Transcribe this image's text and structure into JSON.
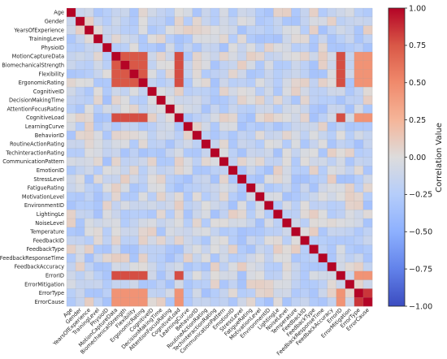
{
  "chart_data": {
    "type": "heatmap",
    "labels": [
      "Age",
      "Gender",
      "YearsOfExperience",
      "TrainingLevel",
      "PhysioID",
      "MotionCaptureData",
      "BiomechanicalStrength",
      "Flexibility",
      "ErgonomicRating",
      "CognitiveID",
      "DecisionMakingTime",
      "AttentionFocusRating",
      "CognitiveLoad",
      "LearningCurve",
      "BehaviorID",
      "RoutineActionRating",
      "TechinteractionRating",
      "CommunicationPattern",
      "EmotionID",
      "StressLevel",
      "FatigueRating",
      "MotivationLevel",
      "EnvironmentID",
      "LightingLe",
      "NoiseLevel",
      "Temperature",
      "FeedbackID",
      "FeedbackType",
      "FeedbackResponseTime",
      "FeedbackAccuracy",
      "ErrorID",
      "ErrorMitigation",
      "ErrorType",
      "ErrorCause"
    ],
    "colorbar": {
      "label": "Correlation Value",
      "min": -1.0,
      "max": 1.0,
      "ticks": [
        "1.00",
        "0.75",
        "0.50",
        "0.25",
        "0.00",
        "−0.25",
        "−0.50",
        "−0.75",
        "−1.00"
      ]
    },
    "diagonal_value": 1.0,
    "strong_group_a": [
      "MotionCaptureData",
      "BiomechanicalStrength",
      "Flexibility",
      "ErgonomicRating"
    ],
    "strong_group_a_value": 0.75,
    "linked_pairs": [
      {
        "row": "CognitiveLoad",
        "cols": [
          "MotionCaptureData",
          "BiomechanicalStrength",
          "Flexibility",
          "ErgonomicRating"
        ],
        "value": 0.78
      },
      {
        "row": "ErrorID",
        "cols": [
          "MotionCaptureData",
          "BiomechanicalStrength",
          "Flexibility",
          "ErgonomicRating",
          "CognitiveLoad"
        ],
        "value": 0.78
      },
      {
        "row": "ErrorType",
        "cols": [
          "MotionCaptureData",
          "BiomechanicalStrength",
          "Flexibility",
          "ErgonomicRating",
          "CognitiveLoad"
        ],
        "value": 0.45
      },
      {
        "row": "ErrorCause",
        "cols": [
          "MotionCaptureData",
          "BiomechanicalStrength",
          "Flexibility",
          "ErgonomicRating",
          "CognitiveLoad"
        ],
        "value": 0.45
      },
      {
        "row": "MotionCaptureData",
        "cols": [
          "CognitiveLoad",
          "ErrorID"
        ],
        "value": 0.78
      },
      {
        "row": "MotionCaptureData",
        "cols": [
          "ErrorType",
          "ErrorCause"
        ],
        "value": 0.45
      },
      {
        "row": "CognitiveLoad",
        "cols": [
          "ErrorID"
        ],
        "value": 0.78
      },
      {
        "row": "CognitiveLoad",
        "cols": [
          "ErrorType",
          "ErrorCause"
        ],
        "value": 0.45
      },
      {
        "row": "ErrorID",
        "cols": [
          "ErrorType",
          "ErrorCause"
        ],
        "value": 0.45
      },
      {
        "row": "ErrorType",
        "cols": [
          "ErrorCause"
        ],
        "value": 0.85
      }
    ],
    "background_range": [
      -0.35,
      0.1
    ],
    "grid": true
  }
}
